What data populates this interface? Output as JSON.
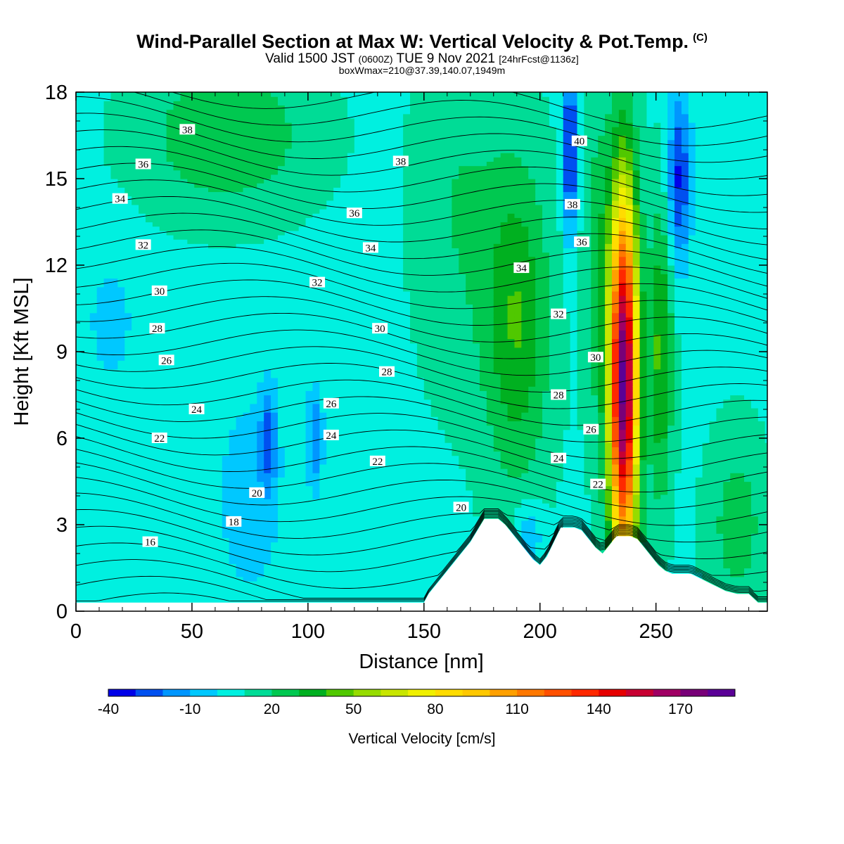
{
  "header": {
    "title": "Wind-Parallel Section at Max W: Vertical Velocity & Pot.Temp.",
    "copyright_mark": "(C)",
    "valid_prefix": "Valid 1500 JST",
    "valid_utc": "(0600Z)",
    "valid_date": "TUE 9 Nov 2021",
    "forecast_info": "[24hrFcst@1136z]",
    "box_info": "boxWmax=210@37.39,140.07,1949m"
  },
  "chart_data": {
    "type": "heatmap",
    "xlabel": "Distance [nm]",
    "ylabel": "Height [Kft MSL]",
    "xlim": [
      0,
      298
    ],
    "ylim": [
      0,
      18
    ],
    "xticks": [
      0,
      50,
      100,
      150,
      200,
      250
    ],
    "yticks": [
      0,
      3,
      6,
      9,
      12,
      15,
      18
    ],
    "colorbar": {
      "title": "Vertical Velocity [cm/s]",
      "levels": [
        -40,
        -30,
        -20,
        -10,
        0,
        10,
        20,
        30,
        40,
        50,
        60,
        70,
        80,
        90,
        100,
        110,
        120,
        130,
        140,
        150,
        160,
        170,
        180
      ],
      "tick_values": [
        -40,
        -10,
        20,
        50,
        80,
        110,
        140,
        170
      ],
      "tick_labels": [
        "-40",
        "-10",
        "20",
        "50",
        "80",
        "110",
        "140",
        "170"
      ],
      "colors": [
        "#0000e8",
        "#0050f0",
        "#0096ff",
        "#00c8ff",
        "#00f0e0",
        "#00dc96",
        "#00c850",
        "#00b020",
        "#50c800",
        "#96dc00",
        "#c8e600",
        "#f0f000",
        "#ffdc00",
        "#ffc800",
        "#ffa000",
        "#ff7800",
        "#ff5000",
        "#ff2800",
        "#e60000",
        "#c80032",
        "#a00064",
        "#780078",
        "#5a0096"
      ]
    },
    "theta_contour_labels": [
      {
        "text": "38",
        "x": 48,
        "y": 16.7
      },
      {
        "text": "36",
        "x": 29,
        "y": 15.5
      },
      {
        "text": "34",
        "x": 19,
        "y": 14.3
      },
      {
        "text": "32",
        "x": 29,
        "y": 12.7
      },
      {
        "text": "30",
        "x": 36,
        "y": 11.1
      },
      {
        "text": "28",
        "x": 35,
        "y": 9.8
      },
      {
        "text": "26",
        "x": 39,
        "y": 8.7
      },
      {
        "text": "24",
        "x": 52,
        "y": 7.0
      },
      {
        "text": "22",
        "x": 36,
        "y": 6.0
      },
      {
        "text": "20",
        "x": 78,
        "y": 4.1
      },
      {
        "text": "18",
        "x": 68,
        "y": 3.1
      },
      {
        "text": "16",
        "x": 32,
        "y": 2.4
      },
      {
        "text": "38",
        "x": 140,
        "y": 15.6
      },
      {
        "text": "36",
        "x": 120,
        "y": 13.8
      },
      {
        "text": "34",
        "x": 127,
        "y": 12.6
      },
      {
        "text": "32",
        "x": 104,
        "y": 11.4
      },
      {
        "text": "30",
        "x": 131,
        "y": 9.8
      },
      {
        "text": "28",
        "x": 134,
        "y": 8.3
      },
      {
        "text": "26",
        "x": 110,
        "y": 7.2
      },
      {
        "text": "24",
        "x": 110,
        "y": 6.1
      },
      {
        "text": "22",
        "x": 130,
        "y": 5.2
      },
      {
        "text": "20",
        "x": 166,
        "y": 3.6
      },
      {
        "text": "40",
        "x": 217,
        "y": 16.3
      },
      {
        "text": "38",
        "x": 214,
        "y": 14.1
      },
      {
        "text": "36",
        "x": 218,
        "y": 12.8
      },
      {
        "text": "34",
        "x": 192,
        "y": 11.9
      },
      {
        "text": "32",
        "x": 208,
        "y": 10.3
      },
      {
        "text": "30",
        "x": 224,
        "y": 8.8
      },
      {
        "text": "28",
        "x": 208,
        "y": 7.5
      },
      {
        "text": "26",
        "x": 222,
        "y": 6.3
      },
      {
        "text": "24",
        "x": 208,
        "y": 5.3
      },
      {
        "text": "22",
        "x": 225,
        "y": 4.4
      }
    ],
    "terrain_profile": {
      "x": [
        0,
        150,
        152,
        155,
        158,
        161,
        164,
        167,
        170,
        173,
        176,
        179,
        182,
        185,
        188,
        191,
        194,
        197,
        200,
        203,
        206,
        209,
        212,
        215,
        218,
        221,
        224,
        227,
        230,
        233,
        236,
        239,
        242,
        245,
        248,
        251,
        254,
        257,
        260,
        265,
        270,
        275,
        280,
        285,
        290,
        294,
        298
      ],
      "height": [
        0.3,
        0.3,
        0.6,
        0.9,
        1.2,
        1.5,
        1.8,
        2.1,
        2.4,
        2.8,
        3.2,
        3.2,
        3.2,
        3.0,
        2.7,
        2.4,
        2.1,
        1.8,
        1.6,
        1.9,
        2.4,
        2.9,
        2.9,
        2.9,
        2.8,
        2.5,
        2.2,
        2.0,
        2.3,
        2.6,
        2.6,
        2.6,
        2.5,
        2.2,
        1.9,
        1.6,
        1.4,
        1.3,
        1.3,
        1.3,
        1.1,
        0.9,
        0.7,
        0.6,
        0.6,
        0.3,
        0.3
      ]
    }
  }
}
